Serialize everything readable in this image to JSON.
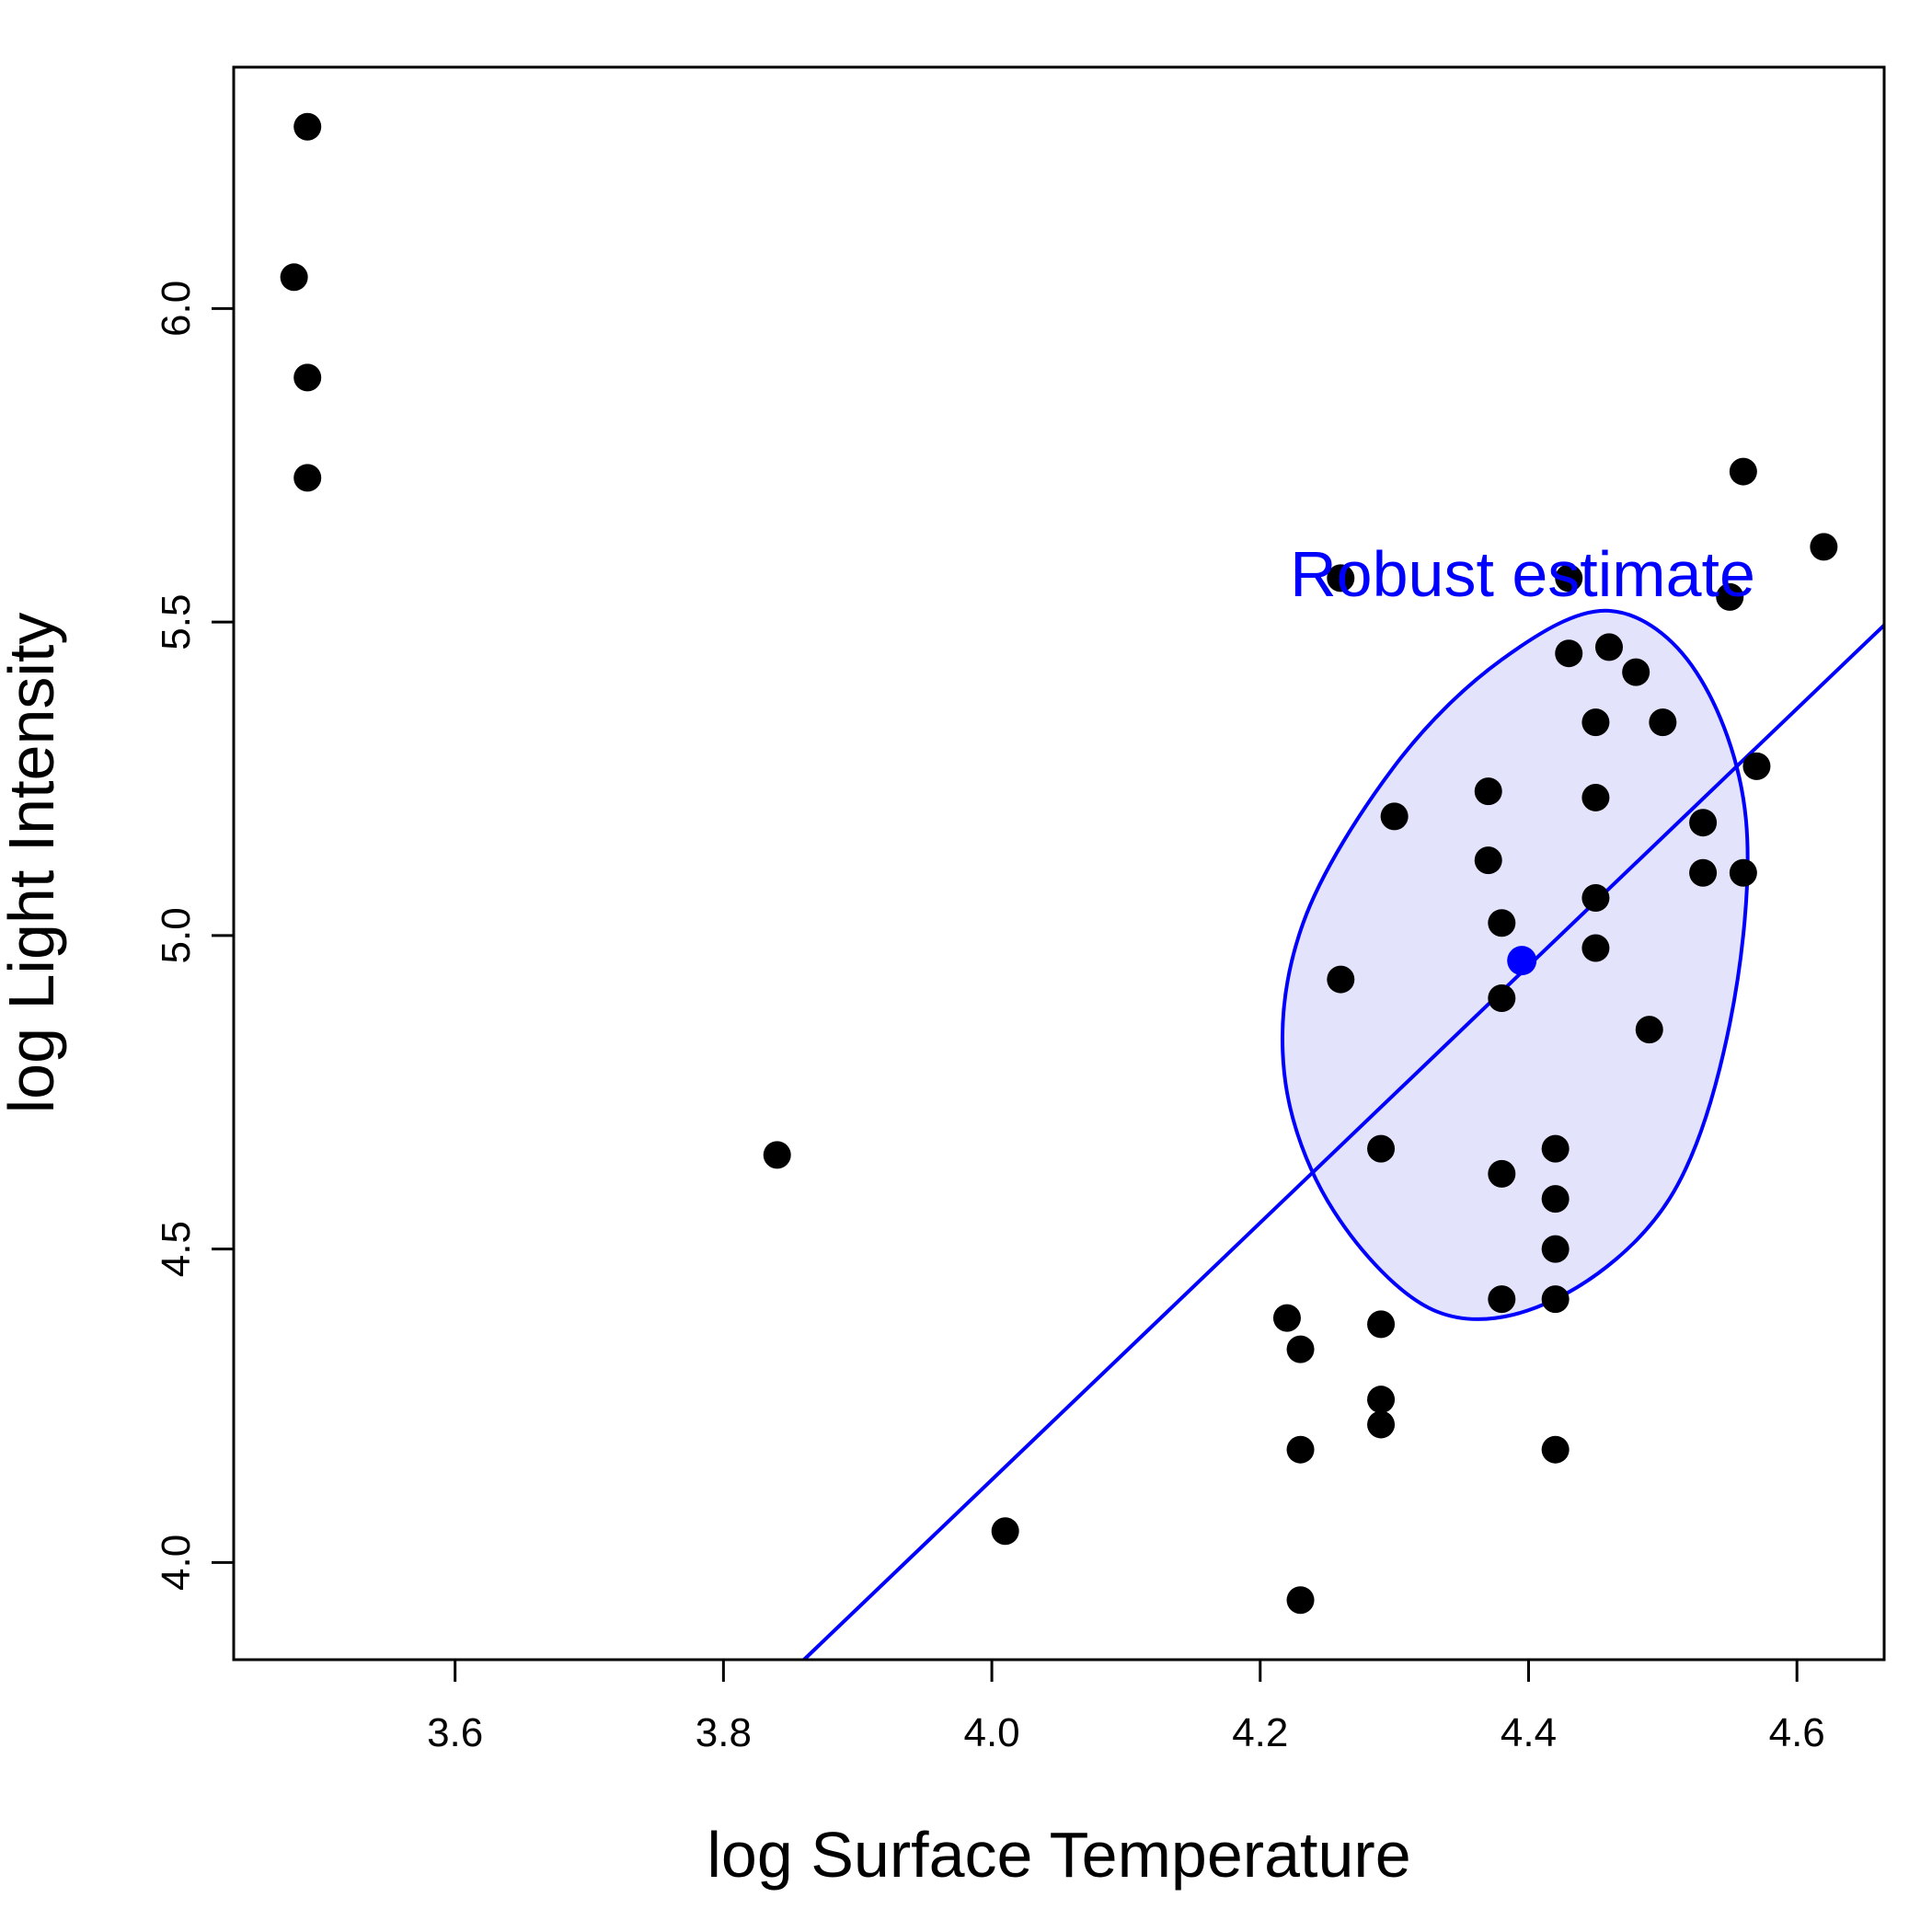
{
  "chart_data": {
    "type": "scatter",
    "title": "",
    "xlabel": "log Surface Temperature",
    "ylabel": "log Light Intensity",
    "xlim": [
      3.435,
      4.665
    ],
    "ylim": [
      3.845,
      6.385
    ],
    "xticks": [
      3.6,
      3.8,
      4.0,
      4.2,
      4.4,
      4.6
    ],
    "xtick_labels": [
      "3.6",
      "3.8",
      "4.0",
      "4.2",
      "4.4",
      "4.6"
    ],
    "yticks": [
      4.0,
      4.5,
      5.0,
      5.5,
      6.0
    ],
    "ytick_labels": [
      "4.0",
      "4.5",
      "5.0",
      "5.5",
      "6.0"
    ],
    "grid": false,
    "points": [
      {
        "x": 3.49,
        "y": 6.29
      },
      {
        "x": 3.48,
        "y": 6.05
      },
      {
        "x": 3.49,
        "y": 5.89
      },
      {
        "x": 3.49,
        "y": 5.73
      },
      {
        "x": 3.84,
        "y": 4.65
      },
      {
        "x": 4.01,
        "y": 4.05
      },
      {
        "x": 4.22,
        "y": 4.39
      },
      {
        "x": 4.23,
        "y": 4.34
      },
      {
        "x": 4.23,
        "y": 4.18
      },
      {
        "x": 4.23,
        "y": 3.94
      },
      {
        "x": 4.26,
        "y": 5.57
      },
      {
        "x": 4.26,
        "y": 4.93
      },
      {
        "x": 4.29,
        "y": 4.66
      },
      {
        "x": 4.29,
        "y": 4.38
      },
      {
        "x": 4.29,
        "y": 4.26
      },
      {
        "x": 4.29,
        "y": 4.22
      },
      {
        "x": 4.3,
        "y": 5.19
      },
      {
        "x": 4.37,
        "y": 5.23
      },
      {
        "x": 4.37,
        "y": 5.12
      },
      {
        "x": 4.38,
        "y": 5.02
      },
      {
        "x": 4.38,
        "y": 4.9
      },
      {
        "x": 4.38,
        "y": 4.62
      },
      {
        "x": 4.38,
        "y": 4.42
      },
      {
        "x": 4.42,
        "y": 4.66
      },
      {
        "x": 4.42,
        "y": 4.58
      },
      {
        "x": 4.42,
        "y": 4.5
      },
      {
        "x": 4.42,
        "y": 4.42
      },
      {
        "x": 4.42,
        "y": 4.18
      },
      {
        "x": 4.43,
        "y": 5.57
      },
      {
        "x": 4.43,
        "y": 5.45
      },
      {
        "x": 4.45,
        "y": 5.34
      },
      {
        "x": 4.45,
        "y": 5.22
      },
      {
        "x": 4.45,
        "y": 5.06
      },
      {
        "x": 4.45,
        "y": 4.98
      },
      {
        "x": 4.46,
        "y": 5.46
      },
      {
        "x": 4.48,
        "y": 5.42
      },
      {
        "x": 4.49,
        "y": 4.85
      },
      {
        "x": 4.5,
        "y": 5.34
      },
      {
        "x": 4.53,
        "y": 5.18
      },
      {
        "x": 4.53,
        "y": 5.1
      },
      {
        "x": 4.55,
        "y": 5.54
      },
      {
        "x": 4.56,
        "y": 5.74
      },
      {
        "x": 4.56,
        "y": 5.1
      },
      {
        "x": 4.57,
        "y": 5.27
      },
      {
        "x": 4.62,
        "y": 5.62
      }
    ],
    "robust_center": {
      "x": 4.395,
      "y": 4.96
    },
    "fit_line": {
      "x1": 3.86,
      "y1": 3.845,
      "x2": 4.665,
      "y2": 5.495
    },
    "ellipse": {
      "points": [
        {
          "x": 4.46,
          "y": 5.518
        },
        {
          "x": 4.525,
          "y": 5.42
        },
        {
          "x": 4.562,
          "y": 5.185
        },
        {
          "x": 4.55,
          "y": 4.86
        },
        {
          "x": 4.505,
          "y": 4.58
        },
        {
          "x": 4.42,
          "y": 4.42
        },
        {
          "x": 4.332,
          "y": 4.4
        },
        {
          "x": 4.255,
          "y": 4.56
        },
        {
          "x": 4.218,
          "y": 4.78
        },
        {
          "x": 4.232,
          "y": 5.02
        },
        {
          "x": 4.3,
          "y": 5.27
        },
        {
          "x": 4.38,
          "y": 5.44
        }
      ]
    },
    "annotation": "Robust estimate",
    "colors": {
      "points": "#000000",
      "estimate": "#0000ff",
      "ellipse_fill": "#e3e3fb",
      "line": "#0000ff"
    }
  }
}
